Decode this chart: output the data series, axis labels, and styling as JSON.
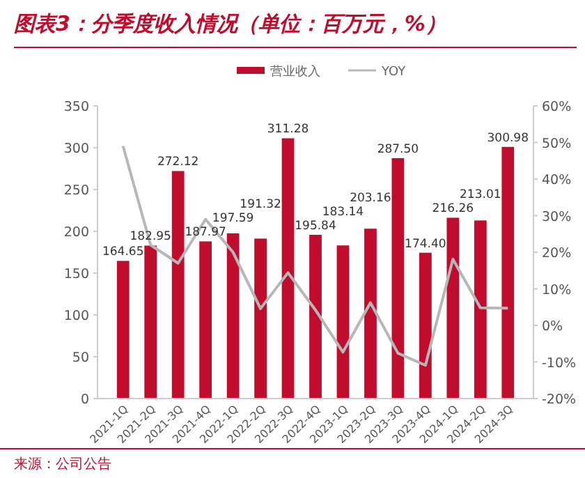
{
  "chart_data": {
    "type": "bar",
    "title": "图表3：分季度收入情况（单位：百万元，%）",
    "annotations": [
      "来源：公司公告"
    ],
    "categories": [
      "2021-1Q",
      "2021-2Q",
      "2021-3Q",
      "2021-4Q",
      "2022-1Q",
      "2022-2Q",
      "2022-3Q",
      "2022-4Q",
      "2023-1Q",
      "2023-2Q",
      "2023-3Q",
      "2023-4Q",
      "2024-1Q",
      "2024-2Q",
      "2024-3Q"
    ],
    "series": [
      {
        "name": "营业收入",
        "color": "#c00d2d",
        "values": [
          164.65,
          182.95,
          272.12,
          187.97,
          197.59,
          191.32,
          311.28,
          195.84,
          183.14,
          203.16,
          287.5,
          174.4,
          216.26,
          213.01,
          300.98
        ],
        "value_labels": [
          "164.65",
          "182.95",
          "272.12",
          "187.97",
          "197.59",
          "191.32",
          "311.28",
          "195.84",
          "183.14",
          "203.16",
          "287.50",
          "174.40",
          "216.26",
          "213.01",
          "300.98"
        ]
      },
      {
        "name": "YOY",
        "type": "line",
        "axis": "y2",
        "color": "#b7b7b7",
        "values": [
          49,
          22,
          17,
          29,
          20,
          4.6,
          14.4,
          4.2,
          -7.3,
          6.2,
          -7.6,
          -10.9,
          18.1,
          4.8,
          4.7
        ]
      }
    ],
    "ylim": [
      0,
      350
    ],
    "yticks": [
      0,
      50,
      100,
      150,
      200,
      250,
      300,
      350
    ],
    "y2lim": [
      -20,
      60
    ],
    "y2ticks": [
      {
        "value": -20,
        "label": "-20%"
      },
      {
        "value": -10,
        "label": "-10%"
      },
      {
        "value": 0,
        "label": "0%"
      },
      {
        "value": 10,
        "label": "10%"
      },
      {
        "value": 20,
        "label": "20%"
      },
      {
        "value": 30,
        "label": "30%"
      },
      {
        "value": 40,
        "label": "40%"
      },
      {
        "value": 50,
        "label": "50%"
      },
      {
        "value": 60,
        "label": "60%"
      }
    ],
    "grid": false,
    "legend": "top",
    "marker": "none",
    "line_style": "solid"
  }
}
